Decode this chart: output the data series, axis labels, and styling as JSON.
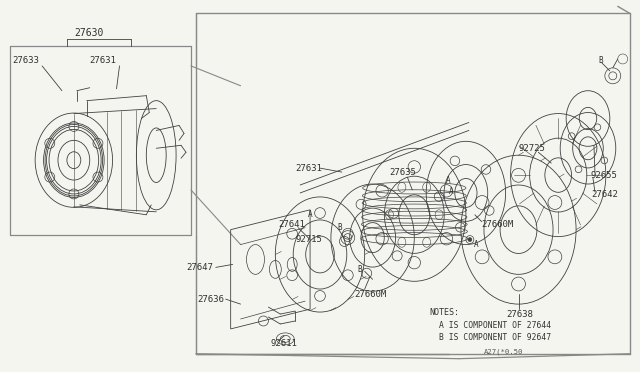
{
  "bg_color": "#f5f5f0",
  "line_color": "#404040",
  "text_color": "#303030",
  "notes": [
    "NOTES:",
    "A IS COMPONENT OF 27644",
    "B IS COMPONENT OF 92647",
    "A27(*0.50"
  ],
  "fig_width": 6.4,
  "fig_height": 3.72,
  "dpi": 100,
  "border_color": "#888888",
  "inner_line_color": "#606060"
}
